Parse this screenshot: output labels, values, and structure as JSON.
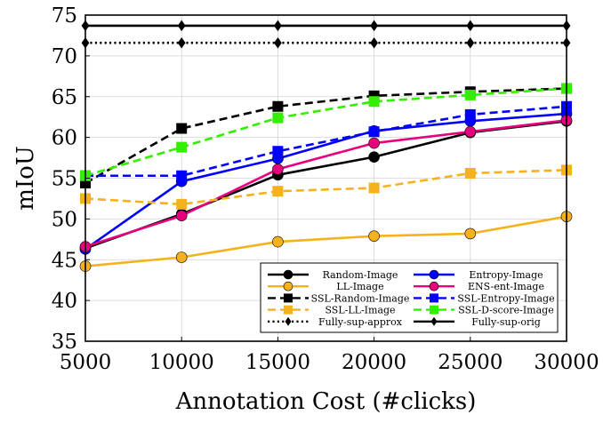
{
  "chart_data": {
    "type": "line",
    "xlabel": "Annotation Cost (#clicks)",
    "ylabel": "mIoU",
    "x": [
      5000,
      10000,
      15000,
      20000,
      25000,
      30000
    ],
    "xlim": [
      5000,
      30000
    ],
    "ylim": [
      35,
      75
    ],
    "xticks": [
      "5000",
      "10000",
      "15000",
      "20000",
      "25000",
      "30000"
    ],
    "yticks": [
      "35",
      "40",
      "45",
      "50",
      "55",
      "60",
      "65",
      "70",
      "75"
    ],
    "grid": true,
    "legend_position": "bottom-right",
    "series": [
      {
        "name": "Random-Image",
        "color": "#000000",
        "dash": "solid",
        "marker": "circle",
        "values": [
          46.4,
          50.6,
          55.4,
          57.6,
          60.6,
          62.0
        ]
      },
      {
        "name": "Entropy-Image",
        "color": "#0000ff",
        "dash": "solid",
        "marker": "circle",
        "values": [
          46.3,
          54.6,
          57.4,
          60.8,
          62.0,
          62.9
        ]
      },
      {
        "name": "LL-Image",
        "color": "#f5b21d",
        "dash": "solid",
        "marker": "circle",
        "values": [
          44.2,
          45.3,
          47.2,
          47.9,
          48.2,
          50.3
        ]
      },
      {
        "name": "ENS-ent-Image",
        "color": "#e6007e",
        "dash": "solid",
        "marker": "circle",
        "values": [
          46.6,
          50.4,
          56.1,
          59.3,
          60.7,
          62.1
        ]
      },
      {
        "name": "SSL-Random-Image",
        "color": "#000000",
        "dash": "dashed",
        "marker": "square",
        "values": [
          54.4,
          61.1,
          63.8,
          65.1,
          65.6,
          66.0
        ]
      },
      {
        "name": "SSL-Entropy-Image",
        "color": "#0000ff",
        "dash": "dashed",
        "marker": "square",
        "values": [
          55.3,
          55.3,
          58.3,
          60.7,
          62.8,
          63.8
        ]
      },
      {
        "name": "SSL-LL-Image",
        "color": "#f5b21d",
        "dash": "dashed",
        "marker": "square",
        "values": [
          52.5,
          51.8,
          53.4,
          53.8,
          55.6,
          56.0
        ]
      },
      {
        "name": "SSL-D-score-Image",
        "color": "#33ee00",
        "dash": "dashed",
        "marker": "square",
        "values": [
          55.3,
          58.8,
          62.4,
          64.4,
          65.2,
          66.0
        ]
      },
      {
        "name": "Fully-sup-approx",
        "color": "#000000",
        "dash": "dotted",
        "marker": "diamond",
        "values": [
          71.6,
          71.6,
          71.6,
          71.6,
          71.6,
          71.6
        ]
      },
      {
        "name": "Fully-sup-orig",
        "color": "#000000",
        "dash": "solid",
        "marker": "diamond",
        "values": [
          73.7,
          73.7,
          73.7,
          73.7,
          73.7,
          73.7
        ]
      }
    ]
  }
}
